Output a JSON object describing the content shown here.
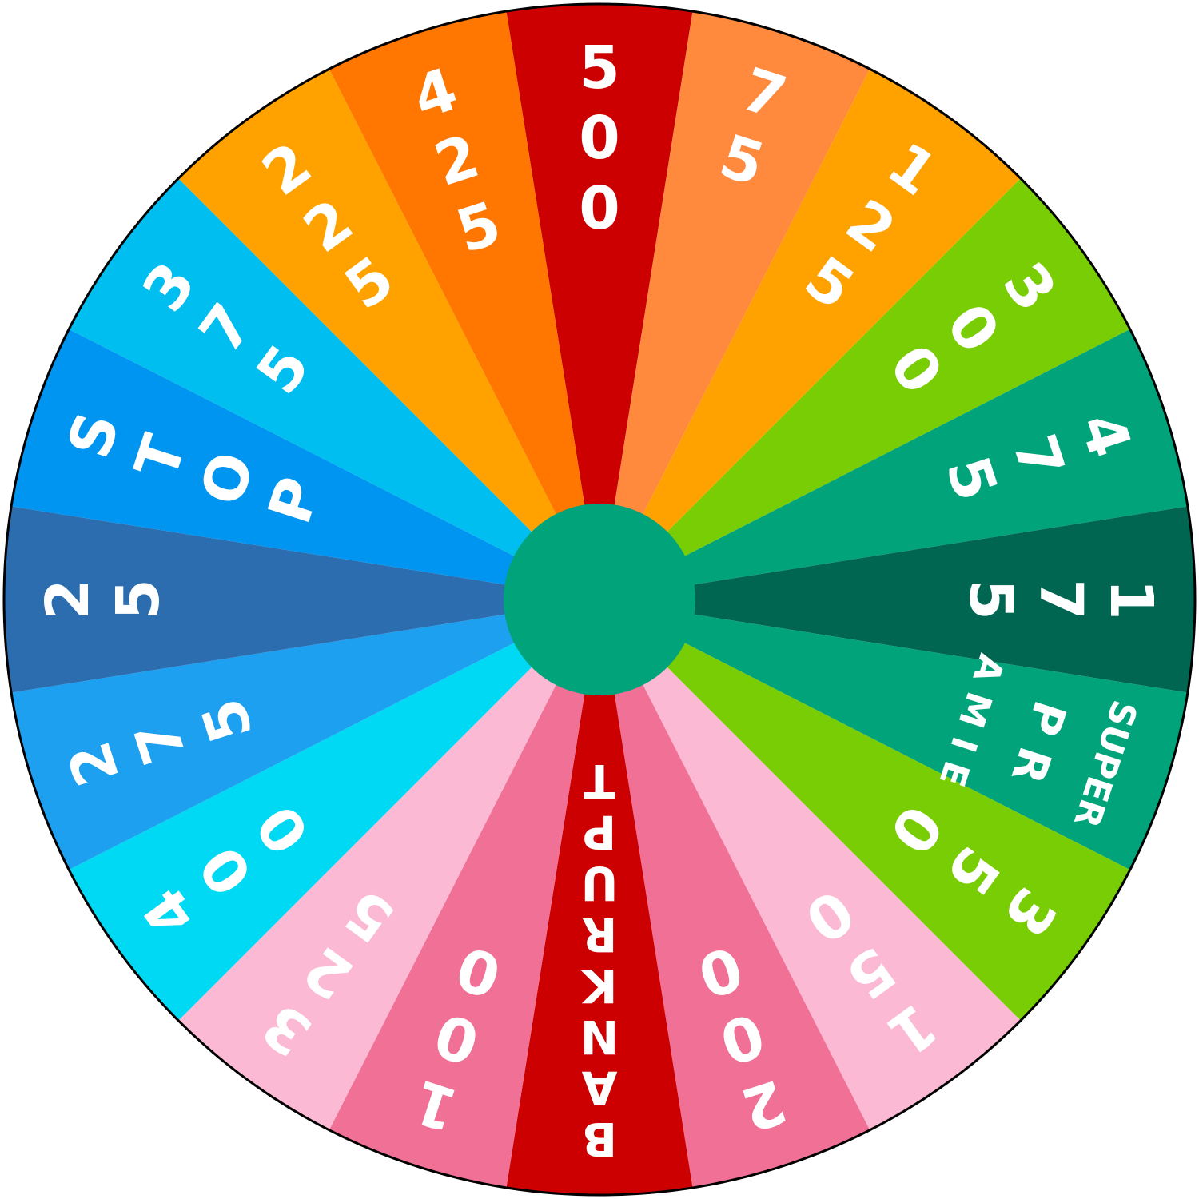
{
  "wheel": {
    "outline_color": "#000000",
    "hub_color": "#00a37a",
    "wedges": [
      {
        "label": "500",
        "lines": [
          "5",
          "0",
          "0"
        ],
        "color": "#cc0000"
      },
      {
        "label": "75",
        "lines": [
          "7",
          "5"
        ],
        "color": "#ff8a3d"
      },
      {
        "label": "125",
        "lines": [
          "1",
          "2",
          "5"
        ],
        "color": "#ffa200"
      },
      {
        "label": "300",
        "lines": [
          "3",
          "0",
          "0"
        ],
        "color": "#78cd04"
      },
      {
        "label": "475",
        "lines": [
          "4",
          "7",
          "5"
        ],
        "color": "#00a37a"
      },
      {
        "label": "175",
        "lines": [
          "1",
          "7",
          "5"
        ],
        "color": "#006652"
      },
      {
        "label": "SUPER PRIMA",
        "lines": [
          "SUPER",
          "P R",
          "A M I E"
        ],
        "color": "#00a37a"
      },
      {
        "label": "350",
        "lines": [
          "3",
          "5",
          "0"
        ],
        "color": "#78cd04"
      },
      {
        "label": "150",
        "lines": [
          "1",
          "5",
          "0"
        ],
        "color": "#fbb9d4"
      },
      {
        "label": "200",
        "lines": [
          "2",
          "0",
          "0"
        ],
        "color": "#f07096"
      },
      {
        "label": "BANKRUPT",
        "lines": [
          "B",
          "A",
          "N",
          "K",
          "R",
          "U",
          "P",
          "T"
        ],
        "color": "#cc0000"
      },
      {
        "label": "100",
        "lines": [
          "1",
          "0",
          "0"
        ],
        "color": "#f07096"
      },
      {
        "label": "325",
        "lines": [
          "3",
          "2",
          "5"
        ],
        "color": "#fbb9d4"
      },
      {
        "label": "400",
        "lines": [
          "4",
          "0",
          "0"
        ],
        "color": "#00d9f3"
      },
      {
        "label": "275",
        "lines": [
          "2",
          "7",
          "5"
        ],
        "color": "#1ea0f0"
      },
      {
        "label": "25",
        "lines": [
          "2",
          "5"
        ],
        "color": "#2b6daf"
      },
      {
        "label": "STOP",
        "lines": [
          "S",
          "T",
          "O",
          "P"
        ],
        "color": "#0095f0"
      },
      {
        "label": "375",
        "lines": [
          "3",
          "7",
          "5"
        ],
        "color": "#00bef0"
      },
      {
        "label": "225",
        "lines": [
          "2",
          "2",
          "5"
        ],
        "color": "#ffa200"
      },
      {
        "label": "425",
        "lines": [
          "4",
          "2",
          "5"
        ],
        "color": "#ff7700"
      }
    ]
  }
}
